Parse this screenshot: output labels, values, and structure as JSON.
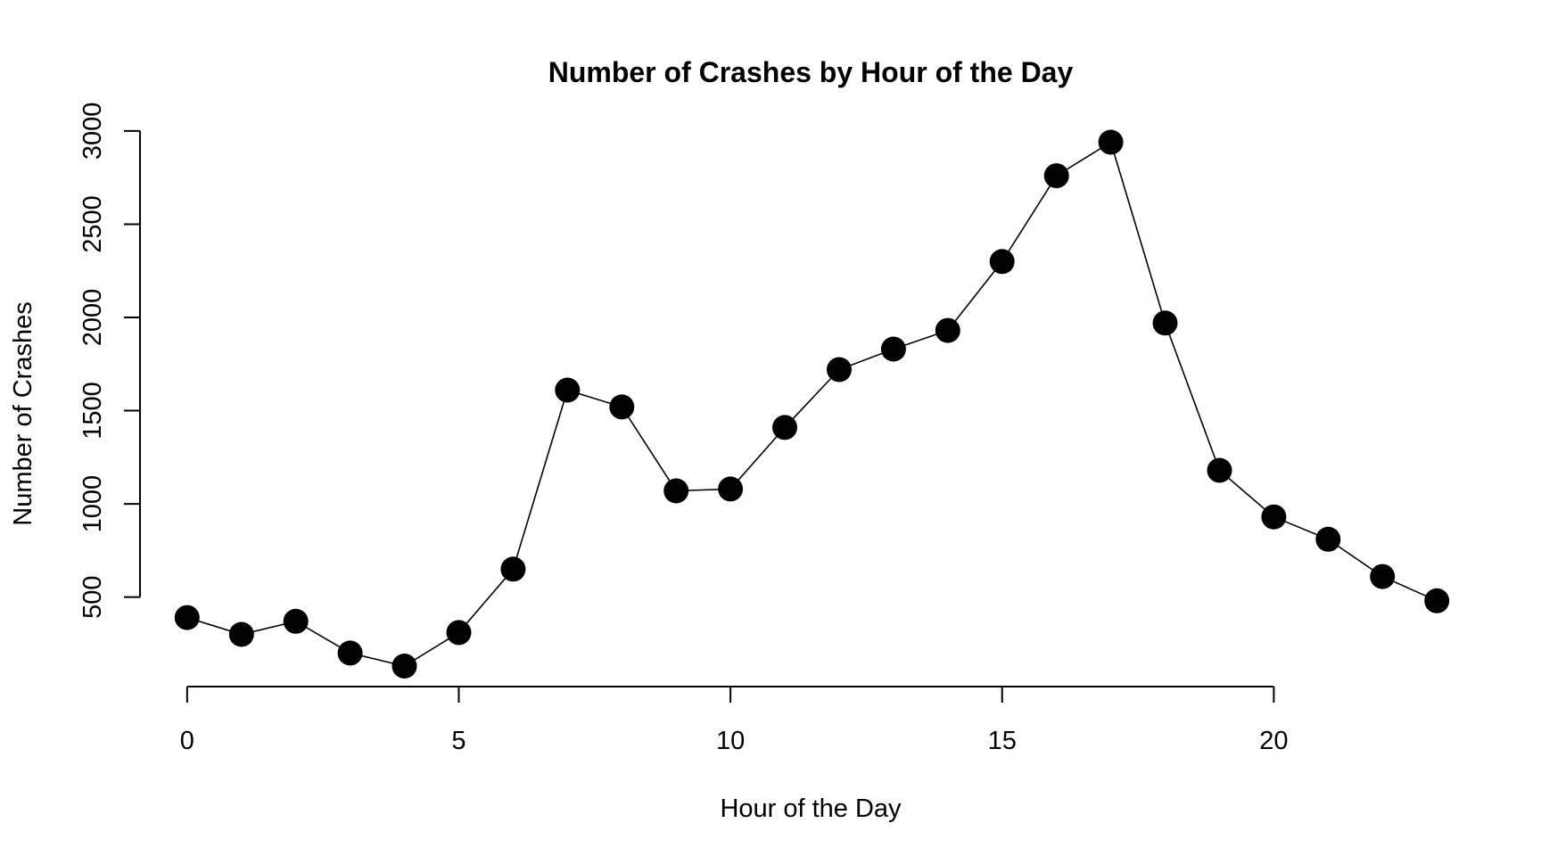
{
  "chart_data": {
    "type": "line",
    "title": "Number of Crashes by Hour of the Day",
    "xlabel": "Hour of the Day",
    "ylabel": "Number of Crashes",
    "xlim": [
      -0.9,
      23.9
    ],
    "ylim": [
      20,
      3100
    ],
    "x_ticks": [
      0,
      5,
      10,
      15,
      20
    ],
    "y_ticks": [
      500,
      1000,
      1500,
      2000,
      2500,
      3000
    ],
    "grid": false,
    "legend": "none",
    "marker": "filled-circle",
    "line_color": "#000000",
    "point_color": "#000000",
    "x": [
      0,
      1,
      2,
      3,
      4,
      5,
      6,
      7,
      8,
      9,
      10,
      11,
      12,
      13,
      14,
      15,
      16,
      17,
      18,
      19,
      20,
      21,
      22,
      23
    ],
    "y": [
      390,
      300,
      370,
      200,
      130,
      310,
      650,
      1610,
      1520,
      1070,
      1080,
      1410,
      1720,
      1830,
      1930,
      2300,
      2760,
      2940,
      1970,
      1180,
      930,
      810,
      610,
      480
    ]
  }
}
